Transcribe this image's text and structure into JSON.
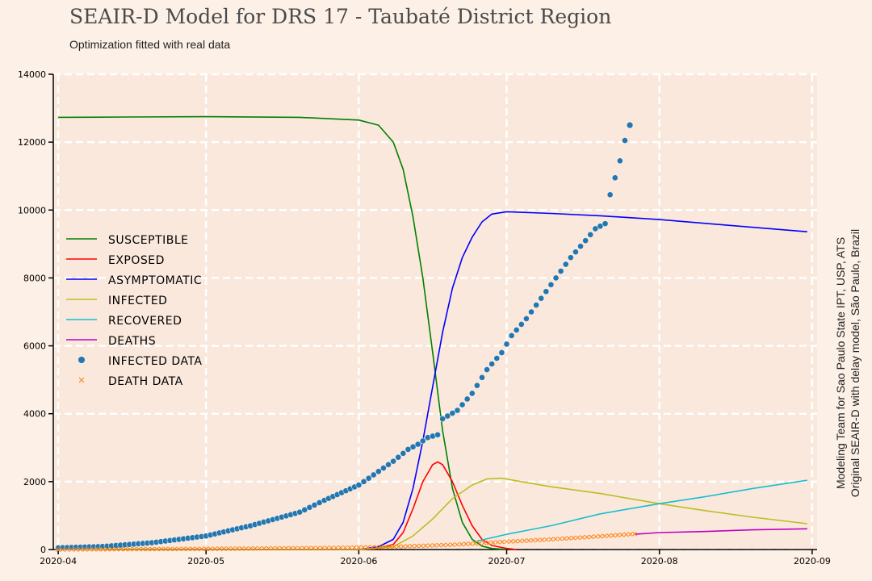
{
  "chart_data": {
    "type": "line",
    "title": "SEAIR-D Model for DRS 17 - Taubaté District Region",
    "subtitle": "Optimization fitted with real data",
    "credit": [
      "Modeling Team for Sao Paulo State IPT, USP, ATS",
      "Original SEAIR-D with delay model, São Paulo, Brazil"
    ],
    "x_ticks": [
      "2020-04",
      "2020-05",
      "2020-06",
      "2020-07",
      "2020-08",
      "2020-09"
    ],
    "y_ticks": [
      0,
      2000,
      4000,
      6000,
      8000,
      10000,
      12000,
      14000
    ],
    "xlim": [
      "2020-03-31",
      "2020-09-02"
    ],
    "ylim": [
      0,
      14000
    ],
    "grid": true,
    "legend": "center-left",
    "series": [
      {
        "name": "SUSCEPTIBLE",
        "color": "#008000",
        "points": [
          [
            "2020-04-01",
            12730
          ],
          [
            "2020-04-15",
            12740
          ],
          [
            "2020-05-01",
            12750
          ],
          [
            "2020-05-20",
            12730
          ],
          [
            "2020-06-01",
            12650
          ],
          [
            "2020-06-05",
            12500
          ],
          [
            "2020-06-08",
            12000
          ],
          [
            "2020-06-10",
            11200
          ],
          [
            "2020-06-12",
            9800
          ],
          [
            "2020-06-14",
            8000
          ],
          [
            "2020-06-16",
            5800
          ],
          [
            "2020-06-18",
            3500
          ],
          [
            "2020-06-20",
            1800
          ],
          [
            "2020-06-22",
            800
          ],
          [
            "2020-06-24",
            300
          ],
          [
            "2020-06-26",
            100
          ],
          [
            "2020-06-28",
            30
          ],
          [
            "2020-07-01",
            0
          ]
        ]
      },
      {
        "name": "EXPOSED",
        "color": "#ff0000",
        "points": [
          [
            "2020-04-01",
            0
          ],
          [
            "2020-06-01",
            0
          ],
          [
            "2020-06-05",
            30
          ],
          [
            "2020-06-08",
            150
          ],
          [
            "2020-06-10",
            500
          ],
          [
            "2020-06-12",
            1200
          ],
          [
            "2020-06-14",
            2000
          ],
          [
            "2020-06-16",
            2500
          ],
          [
            "2020-06-17",
            2580
          ],
          [
            "2020-06-18",
            2500
          ],
          [
            "2020-06-20",
            2000
          ],
          [
            "2020-06-22",
            1300
          ],
          [
            "2020-06-24",
            700
          ],
          [
            "2020-06-26",
            300
          ],
          [
            "2020-06-28",
            120
          ],
          [
            "2020-07-01",
            30
          ],
          [
            "2020-07-03",
            0
          ]
        ]
      },
      {
        "name": "ASYMPTOMATIC",
        "color": "#0000ff",
        "points": [
          [
            "2020-04-01",
            0
          ],
          [
            "2020-06-01",
            0
          ],
          [
            "2020-06-05",
            80
          ],
          [
            "2020-06-08",
            300
          ],
          [
            "2020-06-10",
            800
          ],
          [
            "2020-06-12",
            1800
          ],
          [
            "2020-06-14",
            3200
          ],
          [
            "2020-06-16",
            4800
          ],
          [
            "2020-06-18",
            6400
          ],
          [
            "2020-06-20",
            7700
          ],
          [
            "2020-06-22",
            8600
          ],
          [
            "2020-06-24",
            9200
          ],
          [
            "2020-06-26",
            9650
          ],
          [
            "2020-06-28",
            9880
          ],
          [
            "2020-07-01",
            9950
          ],
          [
            "2020-07-10",
            9900
          ],
          [
            "2020-07-20",
            9830
          ],
          [
            "2020-08-01",
            9720
          ],
          [
            "2020-08-15",
            9550
          ],
          [
            "2020-08-31",
            9360
          ]
        ]
      },
      {
        "name": "INFECTED",
        "color": "#bcbd22",
        "points": [
          [
            "2020-04-01",
            0
          ],
          [
            "2020-06-01",
            0
          ],
          [
            "2020-06-08",
            80
          ],
          [
            "2020-06-12",
            400
          ],
          [
            "2020-06-16",
            900
          ],
          [
            "2020-06-20",
            1500
          ],
          [
            "2020-06-24",
            1900
          ],
          [
            "2020-06-27",
            2080
          ],
          [
            "2020-06-30",
            2100
          ],
          [
            "2020-07-04",
            2000
          ],
          [
            "2020-07-10",
            1850
          ],
          [
            "2020-07-20",
            1650
          ],
          [
            "2020-08-01",
            1350
          ],
          [
            "2020-08-10",
            1150
          ],
          [
            "2020-08-20",
            950
          ],
          [
            "2020-08-31",
            760
          ]
        ]
      },
      {
        "name": "RECOVERED",
        "color": "#17becf",
        "points": [
          [
            "2020-06-25",
            250
          ],
          [
            "2020-07-01",
            450
          ],
          [
            "2020-07-10",
            700
          ],
          [
            "2020-07-20",
            1050
          ],
          [
            "2020-08-01",
            1350
          ],
          [
            "2020-08-10",
            1550
          ],
          [
            "2020-08-20",
            1800
          ],
          [
            "2020-08-31",
            2040
          ]
        ]
      },
      {
        "name": "DEATHS",
        "color": "#c000c0",
        "points": [
          [
            "2020-07-27",
            450
          ],
          [
            "2020-08-01",
            500
          ],
          [
            "2020-08-10",
            530
          ],
          [
            "2020-08-20",
            580
          ],
          [
            "2020-08-31",
            610
          ]
        ]
      },
      {
        "name": "INFECTED DATA",
        "color": "#1f77b4",
        "marker": "dot",
        "points": [
          [
            "2020-04-01",
            50
          ],
          [
            "2020-04-10",
            90
          ],
          [
            "2020-04-20",
            200
          ],
          [
            "2020-05-01",
            400
          ],
          [
            "2020-05-10",
            700
          ],
          [
            "2020-05-20",
            1100
          ],
          [
            "2020-05-25",
            1450
          ],
          [
            "2020-06-01",
            1900
          ],
          [
            "2020-06-05",
            2300
          ],
          [
            "2020-06-08",
            2600
          ],
          [
            "2020-06-11",
            2950
          ],
          [
            "2020-06-13",
            3100
          ],
          [
            "2020-06-15",
            3300
          ],
          [
            "2020-06-17",
            3380
          ],
          [
            "2020-06-18",
            3850
          ],
          [
            "2020-06-21",
            4100
          ],
          [
            "2020-06-24",
            4600
          ],
          [
            "2020-06-27",
            5300
          ],
          [
            "2020-06-30",
            5800
          ],
          [
            "2020-07-02",
            6300
          ],
          [
            "2020-07-05",
            6800
          ],
          [
            "2020-07-08",
            7400
          ],
          [
            "2020-07-11",
            8000
          ],
          [
            "2020-07-14",
            8600
          ],
          [
            "2020-07-17",
            9100
          ],
          [
            "2020-07-19",
            9450
          ],
          [
            "2020-07-21",
            9600
          ],
          [
            "2020-07-22",
            10450
          ],
          [
            "2020-07-23",
            10950
          ],
          [
            "2020-07-24",
            11450
          ],
          [
            "2020-07-25",
            12050
          ],
          [
            "2020-07-26",
            12500
          ]
        ]
      },
      {
        "name": "DEATH DATA",
        "color": "#ff7f0e",
        "marker": "x",
        "points": [
          [
            "2020-04-01",
            0
          ],
          [
            "2020-05-01",
            20
          ],
          [
            "2020-05-20",
            40
          ],
          [
            "2020-06-01",
            60
          ],
          [
            "2020-06-10",
            90
          ],
          [
            "2020-06-20",
            140
          ],
          [
            "2020-07-01",
            230
          ],
          [
            "2020-07-10",
            300
          ],
          [
            "2020-07-20",
            390
          ],
          [
            "2020-07-27",
            460
          ]
        ]
      }
    ]
  }
}
